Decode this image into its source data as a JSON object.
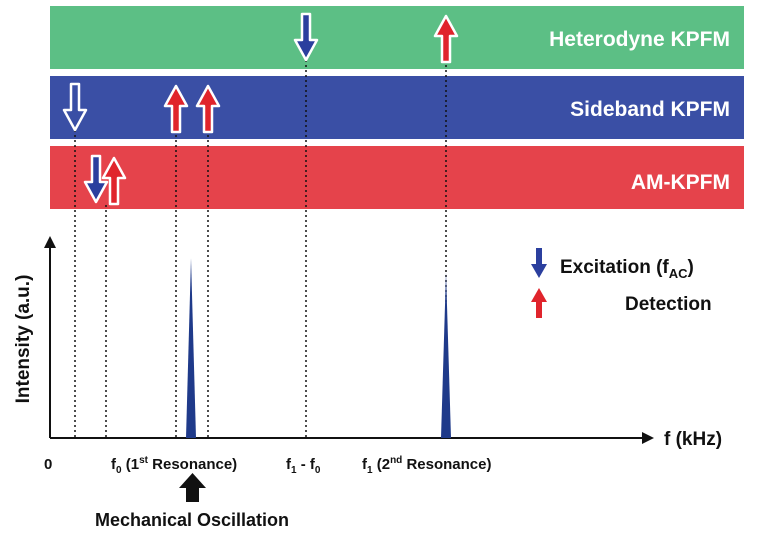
{
  "bands": [
    {
      "label": "Heterodyne KPFM",
      "color": "#5cbf85"
    },
    {
      "label": "Sideband KPFM",
      "color": "#3a4fa5"
    },
    {
      "label": "AM-KPFM",
      "color": "#e5434b"
    }
  ],
  "legend": {
    "excitation": "Excitation (f",
    "excitation_sub": "AC",
    "excitation_close": ")",
    "detection": "Detection"
  },
  "axes": {
    "ylabel": "Intensity (a.u.)",
    "xlabel": "f (kHz)",
    "ticks": {
      "zero": "0",
      "f0": "f",
      "f0_sub": "0",
      "f0_paren_open": " (1",
      "f0_sup": "st",
      "f0_paren_rest": " Resonance)",
      "diff_f": "f",
      "diff_sub1": "1",
      "diff_mid": " - f",
      "diff_sub0": "0",
      "f1": "f",
      "f1_sub": "1",
      "f1_paren_open": " (2",
      "f1_sup": "nd",
      "f1_paren_rest": " Resonance)"
    }
  },
  "mechanical": "Mechanical Oscillation",
  "colors": {
    "excitation": "#2b3f9e",
    "detection": "#e0242c",
    "peak": "#1f3a8a"
  }
}
